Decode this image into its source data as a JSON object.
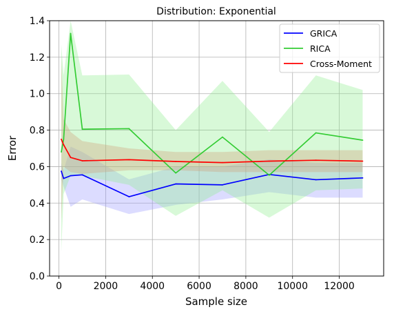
{
  "chart_data": {
    "type": "line",
    "title": "Distribution: Exponential",
    "xlabel": "Sample size",
    "ylabel": "Error",
    "xlim": [
      -400,
      13900
    ],
    "ylim": [
      0,
      1.4
    ],
    "grid": true,
    "legend_position": "top-right",
    "x_ticks": [
      0,
      2000,
      4000,
      6000,
      8000,
      10000,
      12000
    ],
    "x_tick_labels": [
      "0",
      "2000",
      "4000",
      "6000",
      "8000",
      "10000",
      "12000"
    ],
    "y_ticks": [
      0.0,
      0.2,
      0.4,
      0.6,
      0.8,
      1.0,
      1.2,
      1.4
    ],
    "y_tick_labels": [
      "0.0",
      "0.2",
      "0.4",
      "0.6",
      "0.8",
      "1.0",
      "1.2",
      "1.4"
    ],
    "series": [
      {
        "name": "GRICA",
        "color": "#0000ff",
        "band_color": "#9c9cff",
        "x": [
          100,
          200,
          500,
          1000,
          3000,
          5000,
          7000,
          9000,
          11000,
          13000
        ],
        "y": [
          0.575,
          0.535,
          0.55,
          0.555,
          0.435,
          0.505,
          0.5,
          0.557,
          0.528,
          0.538
        ],
        "lower": [
          0.53,
          0.49,
          0.38,
          0.42,
          0.34,
          0.39,
          0.42,
          0.46,
          0.43,
          0.43
        ],
        "upper": [
          0.62,
          0.58,
          0.71,
          0.68,
          0.53,
          0.6,
          0.6,
          0.64,
          0.62,
          0.62
        ]
      },
      {
        "name": "RICA",
        "color": "#33cc33",
        "band_color": "#90ee90",
        "x": [
          100,
          200,
          500,
          1000,
          3000,
          5000,
          7000,
          9000,
          11000,
          13000
        ],
        "y": [
          0.68,
          0.75,
          1.33,
          0.805,
          0.808,
          0.565,
          0.762,
          0.553,
          0.785,
          0.745
        ],
        "lower": [
          0.13,
          0.45,
          0.55,
          0.55,
          0.5,
          0.33,
          0.47,
          0.32,
          0.47,
          0.48
        ],
        "upper": [
          1.27,
          1.1,
          1.4,
          1.1,
          1.105,
          0.8,
          1.07,
          0.79,
          1.1,
          1.02
        ]
      },
      {
        "name": "Cross-Moment",
        "color": "#ff0000",
        "band_color": "#d2a07a",
        "x": [
          100,
          200,
          500,
          1000,
          3000,
          5000,
          7000,
          9000,
          11000,
          13000
        ],
        "y": [
          0.75,
          0.72,
          0.65,
          0.632,
          0.638,
          0.628,
          0.622,
          0.63,
          0.635,
          0.63
        ],
        "lower": [
          0.3,
          0.6,
          0.57,
          0.56,
          0.58,
          0.58,
          0.57,
          0.57,
          0.57,
          0.57
        ],
        "upper": [
          1.2,
          0.86,
          0.79,
          0.74,
          0.7,
          0.68,
          0.68,
          0.69,
          0.69,
          0.69
        ]
      }
    ]
  }
}
